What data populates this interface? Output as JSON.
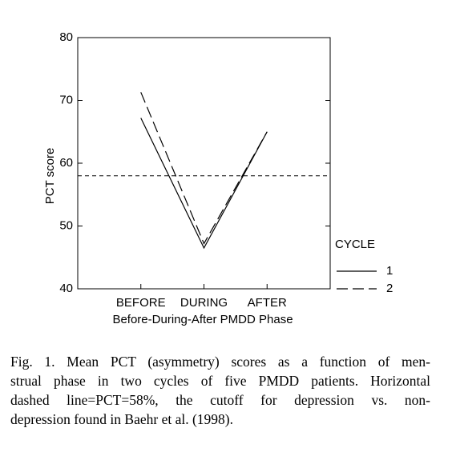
{
  "chart_data": {
    "type": "line",
    "ylabel": "PCT score",
    "xlabel": "Before-During-After PMDD Phase",
    "categories": [
      "BEFORE",
      "DURING",
      "AFTER"
    ],
    "series": [
      {
        "name": "1",
        "color": "#000000",
        "dash": "none",
        "values": [
          67.2,
          46.5,
          65
        ]
      },
      {
        "name": "2",
        "color": "#000000",
        "dash": "14 6",
        "values": [
          71.3,
          47.2,
          65
        ]
      }
    ],
    "ylim": [
      40,
      80
    ],
    "yticks": [
      40,
      50,
      60,
      70,
      80
    ],
    "hline": 58,
    "legend_title": "CYCLE",
    "legend": "right"
  },
  "caption": [
    "Fig. 1. Mean PCT (asymmetry) scores as a function of men-",
    "strual phase in two cycles of five PMDD patients. Horizontal",
    "dashed line=PCT=58%, the cutoff for depression vs. non-",
    "depression found in Baehr et al. (1998)."
  ]
}
